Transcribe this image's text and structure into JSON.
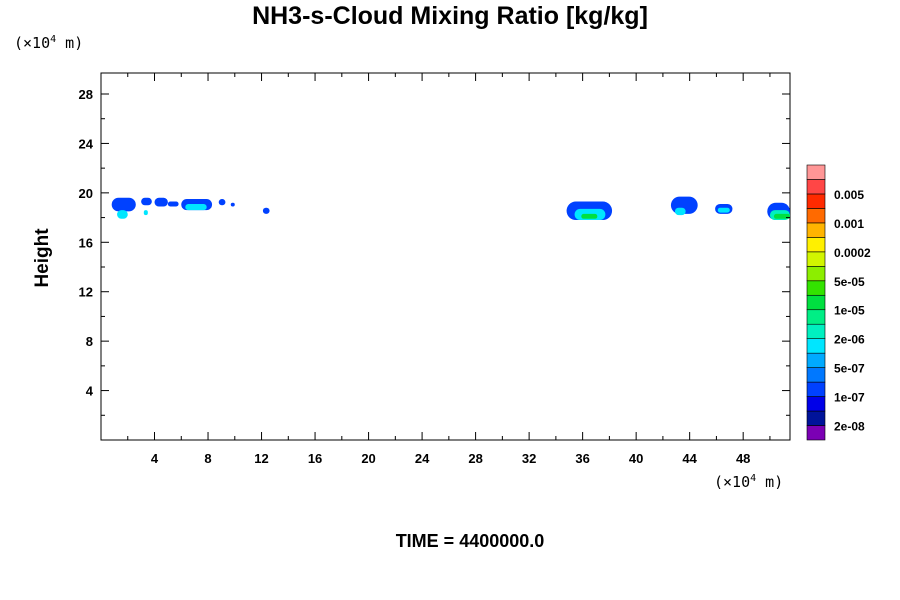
{
  "chart_data": {
    "type": "heatmap",
    "title": "NH3-s-Cloud Mixing Ratio [kg/kg]",
    "ylabel": "Height",
    "x_unit": {
      "prefix": "(×10",
      "exp": "4",
      "suffix": " m)"
    },
    "y_unit": {
      "prefix": "(×10",
      "exp": "4",
      "suffix": " m)"
    },
    "xlim": [
      0,
      51.5
    ],
    "ylim": [
      0,
      29.7
    ],
    "x_ticks": [
      4,
      8,
      12,
      16,
      20,
      24,
      28,
      32,
      36,
      40,
      44,
      48
    ],
    "y_ticks": [
      4,
      8,
      12,
      16,
      20,
      24,
      28
    ],
    "colorbar": {
      "colors": [
        "#7b00b4",
        "#00139a",
        "#0000e8",
        "#0041ff",
        "#0078ff",
        "#00aaff",
        "#00e6ff",
        "#00f0c0",
        "#00ee85",
        "#00e040",
        "#33e300",
        "#8cee00",
        "#d2f500",
        "#fff000",
        "#ffb400",
        "#ff6a00",
        "#ff2a00",
        "#ff4646",
        "#ff9696"
      ],
      "labels": [
        "2e-08",
        "1e-07",
        "5e-07",
        "2e-06",
        "1e-05",
        "5e-05",
        "0.0002",
        "0.001",
        "0.005"
      ]
    },
    "cloud_patches": [
      {
        "x": [
          0.8,
          2.6
        ],
        "y": [
          18.5,
          19.6
        ],
        "level": 3
      },
      {
        "x": [
          1.2,
          2.0
        ],
        "y": [
          17.9,
          18.6
        ],
        "level": 6
      },
      {
        "x": [
          3.0,
          3.8
        ],
        "y": [
          19.0,
          19.6
        ],
        "level": 3
      },
      {
        "x": [
          3.2,
          3.5
        ],
        "y": [
          18.2,
          18.6
        ],
        "level": 6
      },
      {
        "x": [
          4.0,
          5.0
        ],
        "y": [
          18.9,
          19.6
        ],
        "level": 3
      },
      {
        "x": [
          5.0,
          5.8
        ],
        "y": [
          18.9,
          19.3
        ],
        "level": 3
      },
      {
        "x": [
          6.0,
          8.3
        ],
        "y": [
          18.6,
          19.5
        ],
        "level": 3
      },
      {
        "x": [
          6.3,
          7.9
        ],
        "y": [
          18.6,
          19.1
        ],
        "level": 6
      },
      {
        "x": [
          8.8,
          9.3
        ],
        "y": [
          19.0,
          19.5
        ],
        "level": 3
      },
      {
        "x": [
          9.7,
          10.0
        ],
        "y": [
          18.9,
          19.2
        ],
        "level": 3
      },
      {
        "x": [
          12.1,
          12.6
        ],
        "y": [
          18.3,
          18.8
        ],
        "level": 3
      },
      {
        "x": [
          34.8,
          38.2
        ],
        "y": [
          17.8,
          19.3
        ],
        "level": 3
      },
      {
        "x": [
          35.4,
          37.7
        ],
        "y": [
          17.8,
          18.7
        ],
        "level": 6
      },
      {
        "x": [
          35.9,
          37.1
        ],
        "y": [
          17.9,
          18.3
        ],
        "level": 9
      },
      {
        "x": [
          42.6,
          44.6
        ],
        "y": [
          18.3,
          19.7
        ],
        "level": 3
      },
      {
        "x": [
          42.9,
          43.7
        ],
        "y": [
          18.2,
          18.8
        ],
        "level": 6
      },
      {
        "x": [
          45.9,
          47.2
        ],
        "y": [
          18.3,
          19.1
        ],
        "level": 3
      },
      {
        "x": [
          46.1,
          47.0
        ],
        "y": [
          18.4,
          18.8
        ],
        "level": 6
      },
      {
        "x": [
          49.8,
          51.5
        ],
        "y": [
          17.8,
          19.2
        ],
        "level": 3
      },
      {
        "x": [
          50.0,
          51.5
        ],
        "y": [
          17.8,
          18.6
        ],
        "level": 7
      },
      {
        "x": [
          50.3,
          51.5
        ],
        "y": [
          17.9,
          18.3
        ],
        "level": 9
      }
    ]
  },
  "footer": {
    "time_label": "TIME = 4400000.0"
  }
}
